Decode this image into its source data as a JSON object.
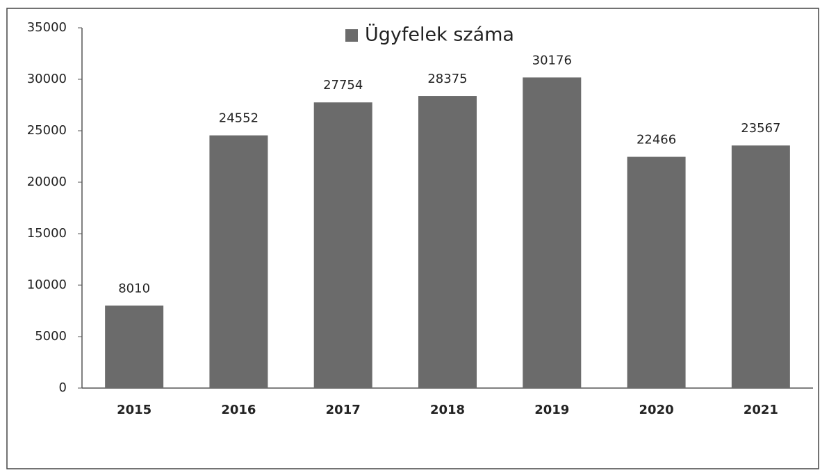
{
  "chart_data": {
    "type": "bar",
    "categories": [
      "2015",
      "2016",
      "2017",
      "2018",
      "2019",
      "2020",
      "2021"
    ],
    "series": [
      {
        "name": "Ügyfelek száma",
        "color": "#6b6b6b",
        "values": [
          8010,
          24552,
          27754,
          28375,
          30176,
          22466,
          23567
        ]
      }
    ],
    "ylim": [
      0,
      35000
    ],
    "yticks": [
      0,
      5000,
      10000,
      15000,
      20000,
      25000,
      30000,
      35000
    ],
    "grid": false,
    "legend": "top"
  }
}
